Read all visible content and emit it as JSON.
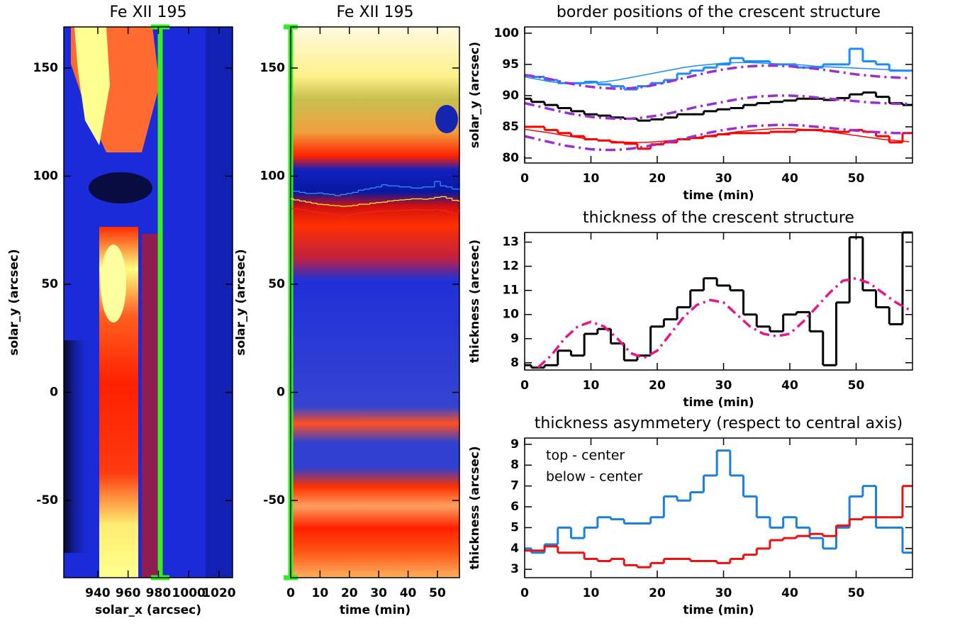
{
  "chart_data": [
    {
      "type": "heatmap",
      "title": "Fe XII 195",
      "xlabel": "solar_x (arcsec)",
      "ylabel": "solar_y (arcsec)",
      "xlim": [
        917.6,
        1028.9
      ],
      "xticks": [
        940,
        960,
        980,
        1000,
        1020
      ],
      "ylim": [
        -85.7,
        169
      ],
      "yticks": [
        -50,
        0,
        50,
        100,
        150
      ]
    },
    {
      "type": "heatmap",
      "title": "Fe XII 195",
      "xlabel": "time (min)",
      "ylabel": "solar_y (arcsec)",
      "xlim": [
        0,
        57.5
      ],
      "xticks": [
        0,
        10,
        20,
        30,
        40,
        50
      ],
      "ylim": [
        -85.7,
        169
      ],
      "yticks": [
        -50,
        0,
        50,
        100,
        150
      ],
      "overlay_colors": [
        "#3399ff",
        "#ffff30",
        "#ff2020"
      ]
    },
    {
      "type": "line",
      "title": "border positions of the crescent structure",
      "xlabel": "time (min)",
      "ylabel": "solar_y (arcsec)",
      "xlim": [
        0,
        58.5
      ],
      "xticks": [
        0,
        10,
        20,
        30,
        40,
        50
      ],
      "ylim": [
        79.2,
        101
      ],
      "yticks": [
        80,
        85,
        90,
        95,
        100
      ],
      "x": [
        0,
        2,
        4,
        6,
        8,
        10,
        12,
        14,
        16,
        18,
        20,
        22,
        24,
        26,
        28,
        30,
        32,
        34,
        36,
        38,
        40,
        42,
        44,
        46,
        48,
        50,
        52,
        54,
        56,
        58
      ],
      "series": [
        {
          "color": "#1a8cff",
          "style": "step",
          "values": [
            93.2,
            93,
            92.5,
            92,
            92,
            92.2,
            91.8,
            91.5,
            91,
            91.5,
            92,
            92.5,
            93.5,
            94,
            94.5,
            95,
            96,
            95.5,
            95.5,
            95,
            95,
            94.5,
            94.5,
            95,
            95,
            97.5,
            95.5,
            95,
            94,
            94
          ]
        },
        {
          "color": "#000000",
          "style": "step",
          "values": [
            89.5,
            89,
            88.5,
            88,
            87.5,
            87,
            86.8,
            86.5,
            86.3,
            86,
            86.2,
            86.5,
            87,
            87,
            87.5,
            87.8,
            88,
            88.5,
            88.8,
            89,
            89.2,
            89.5,
            89.5,
            89.3,
            89.6,
            90.2,
            90.5,
            89.8,
            88.8,
            88.5
          ]
        },
        {
          "color": "#ff0000",
          "style": "step",
          "values": [
            85,
            85,
            84.5,
            84,
            83.5,
            83,
            82.8,
            82.5,
            82.3,
            81.5,
            82.2,
            82.5,
            83,
            83.2,
            83.5,
            83.8,
            84,
            84,
            84,
            84.2,
            84.2,
            84.5,
            84.5,
            84.3,
            84.2,
            84.5,
            84.2,
            83.5,
            82.5,
            84
          ]
        },
        {
          "color": "#1a8cff",
          "style": "thin",
          "values": [
            93,
            92.6,
            92.2,
            92,
            91.9,
            92,
            92.2,
            92.5,
            92.9,
            93.3,
            93.7,
            94.1,
            94.5,
            94.8,
            95,
            95.2,
            95.3,
            95.3,
            95.2,
            95.1,
            95,
            94.9,
            94.7,
            94.6,
            94.5,
            94.4,
            94.3,
            94.2,
            94.1,
            94
          ]
        },
        {
          "color": "#ff0000",
          "style": "thin",
          "values": [
            84.6,
            84.3,
            84,
            83.6,
            83.3,
            83,
            82.8,
            82.6,
            82.5,
            82.5,
            82.6,
            82.8,
            83,
            83.3,
            83.6,
            83.9,
            84.2,
            84.4,
            84.6,
            84.7,
            84.7,
            84.6,
            84.4,
            84.2,
            83.9,
            83.6,
            83.3,
            83,
            82.8,
            82.6
          ]
        },
        {
          "color": "#9b30d0",
          "style": "dashdot",
          "values": [
            93.3,
            93,
            92.6,
            92.1,
            91.7,
            91.4,
            91.2,
            91.1,
            91.2,
            91.4,
            91.8,
            92.3,
            92.8,
            93.3,
            93.8,
            94.2,
            94.5,
            94.7,
            94.8,
            94.8,
            94.7,
            94.5,
            94.3,
            94,
            93.7,
            93.4,
            93.2,
            93,
            92.9,
            92.8
          ]
        },
        {
          "color": "#9b30d0",
          "style": "dashdot",
          "values": [
            88.8,
            88.3,
            87.8,
            87.3,
            86.9,
            86.6,
            86.4,
            86.3,
            86.3,
            86.5,
            86.8,
            87.2,
            87.7,
            88.2,
            88.6,
            89,
            89.4,
            89.7,
            89.9,
            90,
            90,
            89.9,
            89.7,
            89.5,
            89.3,
            89.1,
            88.9,
            88.8,
            88.7,
            88.7
          ]
        },
        {
          "color": "#9b30d0",
          "style": "dashdot",
          "values": [
            83.5,
            83,
            82.5,
            82,
            81.7,
            81.4,
            81.3,
            81.3,
            81.5,
            81.8,
            82.2,
            82.6,
            83.1,
            83.6,
            84.1,
            84.5,
            84.8,
            85.1,
            85.2,
            85.3,
            85.3,
            85.2,
            85,
            84.8,
            84.6,
            84.4,
            84.2,
            84.1,
            84,
            84
          ]
        }
      ]
    },
    {
      "type": "line",
      "title": "thickness of the crescent structure",
      "xlabel": "time (min)",
      "ylabel": "thickness (arcsec)",
      "xlim": [
        0,
        58.5
      ],
      "xticks": [
        0,
        10,
        20,
        30,
        40,
        50
      ],
      "ylim": [
        7.7,
        13.4
      ],
      "yticks": [
        8,
        9,
        10,
        11,
        12,
        13
      ],
      "x": [
        0,
        2,
        4,
        6,
        8,
        10,
        12,
        14,
        16,
        18,
        20,
        22,
        24,
        26,
        28,
        30,
        32,
        34,
        36,
        38,
        40,
        42,
        44,
        46,
        48,
        50,
        52,
        54,
        56,
        58
      ],
      "series": [
        {
          "color": "#000000",
          "style": "step",
          "values": [
            7.9,
            7.8,
            7.9,
            8.5,
            8.3,
            9.2,
            9.4,
            8.8,
            8.1,
            8.3,
            9.5,
            9.8,
            10.3,
            11,
            11.5,
            11.2,
            11,
            10,
            9.5,
            9.3,
            10,
            10.1,
            9.3,
            7.9,
            10.5,
            13.2,
            11,
            10.3,
            9.6,
            13.4
          ]
        },
        {
          "color": "#e8158c",
          "style": "dashdot",
          "values": [
            null,
            7.8,
            8.3,
            9,
            9.5,
            9.7,
            9.5,
            9,
            8.4,
            8.2,
            8.5,
            9.2,
            9.9,
            10.4,
            10.6,
            10.5,
            10,
            9.5,
            9.2,
            9.1,
            9.2,
            9.7,
            10.3,
            10.9,
            11.4,
            11.5,
            11.3,
            10.9,
            10.5,
            10.2
          ]
        }
      ]
    },
    {
      "type": "line",
      "title": "thickness asymmetery (respect to central axis)",
      "xlabel": "time (min)",
      "ylabel": "thickness (arcsec)",
      "xlim": [
        0,
        58.5
      ],
      "xticks": [
        0,
        10,
        20,
        30,
        40,
        50
      ],
      "ylim": [
        2.6,
        9.3
      ],
      "yticks": [
        3,
        4,
        5,
        6,
        7,
        8,
        9
      ],
      "x": [
        0,
        2,
        4,
        6,
        8,
        10,
        12,
        14,
        16,
        18,
        20,
        22,
        24,
        26,
        28,
        30,
        32,
        34,
        36,
        38,
        40,
        42,
        44,
        46,
        48,
        50,
        52,
        54,
        56,
        58
      ],
      "series": [
        {
          "name": "top - center",
          "color": "#1a7fe0",
          "style": "step",
          "values": [
            4,
            3.8,
            4.2,
            5,
            4.5,
            5,
            5.5,
            5.4,
            5.2,
            5.2,
            5.5,
            6.5,
            6.3,
            6.7,
            7.5,
            8.7,
            7.5,
            6.5,
            5.5,
            5,
            5.5,
            5,
            4.5,
            4,
            5,
            6.5,
            7,
            5,
            5,
            3.8
          ]
        },
        {
          "name": "below - center",
          "color": "#ee1111",
          "style": "step",
          "values": [
            3.9,
            3.9,
            4.1,
            3.8,
            3.8,
            3.5,
            3.4,
            3.5,
            3.2,
            3.1,
            3.3,
            3.5,
            3.5,
            3.4,
            3.4,
            3.3,
            3.5,
            3.7,
            4,
            4.4,
            4.5,
            4.6,
            4.7,
            4.6,
            5.1,
            5.4,
            5.5,
            5.5,
            5.5,
            7
          ]
        }
      ]
    }
  ]
}
